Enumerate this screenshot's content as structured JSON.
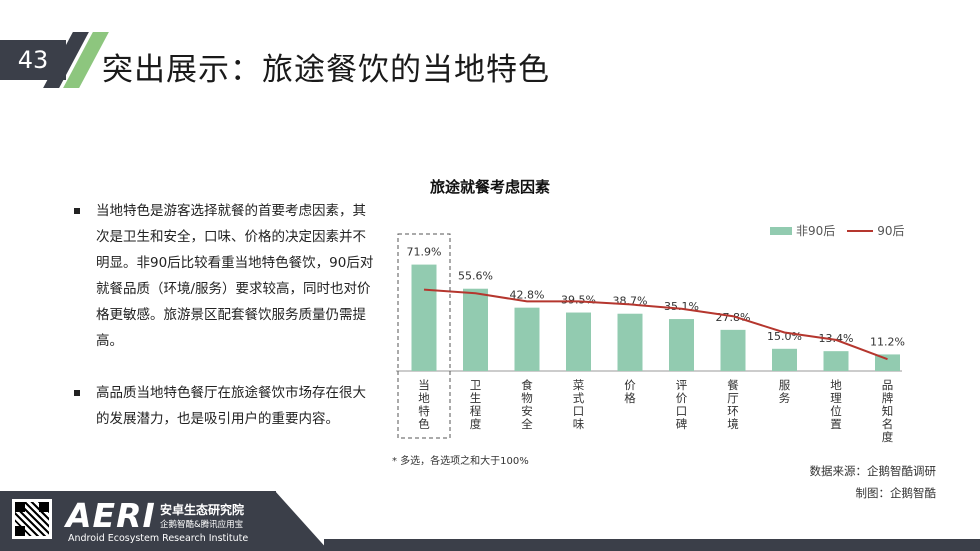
{
  "header": {
    "page_number": "43",
    "title": "突出展示：旅途餐饮的当地特色"
  },
  "bullets": [
    "当地特色是游客选择就餐的首要考虑因素，其次是卫生和安全，口味、价格的决定因素并不明显。非90后比较看重当地特色餐饮，90后对就餐品质（环境/服务）要求较高，同时也对价格更敏感。旅游景区配套餐饮服务质量仍需提高。",
    "高品质当地特色餐厅在旅途餐饮市场存在很大的发展潜力，也是吸引用户的重要内容。"
  ],
  "chart_data": {
    "type": "bar",
    "title": "旅途就餐考虑因素",
    "categories": [
      "当地特色",
      "卫生程度",
      "食物安全",
      "菜式口味",
      "价格",
      "评价口碑",
      "餐厅环境",
      "服务",
      "地理位置",
      "品牌知名度"
    ],
    "series": [
      {
        "name": "非90后",
        "type": "bar",
        "values": [
          71.9,
          55.6,
          42.8,
          39.5,
          38.7,
          35.1,
          27.8,
          15.0,
          13.4,
          11.2
        ]
      },
      {
        "name": "90后",
        "type": "line",
        "values": [
          55.0,
          52.5,
          47.0,
          47.0,
          45.0,
          42.0,
          37.0,
          26.0,
          21.0,
          8.0
        ]
      }
    ],
    "data_labels": [
      "71.9%",
      "55.6%",
      "42.8%",
      "39.5%",
      "38.7%",
      "35.1%",
      "27.8%",
      "15.0%",
      "13.4%",
      "11.2%"
    ],
    "legend_position": "top-right",
    "highlight_category": "当地特色",
    "ylim": [
      0,
      100
    ],
    "colors": {
      "bar": "#92cbb0",
      "line": "#b5362e",
      "axis": "#999999"
    }
  },
  "footnote": "*    多选，各选项之和大于100%",
  "source": "数据来源：企鹅智酷调研",
  "credit": "制图：企鹅智酷",
  "footer": {
    "logo": "AERI",
    "org_cn": "安卓生态研究院",
    "org_sub": "企鹅智酷&腾讯应用宝",
    "org_en": "Android Ecosystem Research Institute"
  }
}
